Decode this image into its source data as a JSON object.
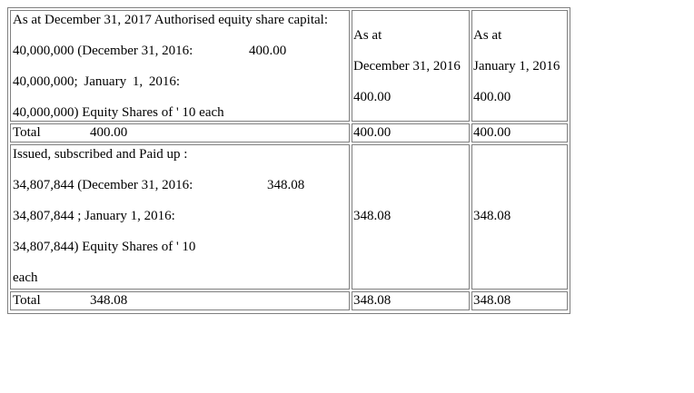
{
  "rows": [
    {
      "desc_lines": [
        "As at December 31, 2017 Authorised equity share capital:",
        "40,000,000 (December 31, 2016:",
        "40,000,000; January 1, 2016:",
        "40,000,000) Equity Shares of ' 10 each"
      ],
      "inline_value": "400.00",
      "col2_lines": [
        "As at",
        "December 31, 2016",
        "400.00"
      ],
      "col3_lines": [
        "As at",
        "January 1, 2016",
        "400.00"
      ]
    },
    {
      "label": "Total",
      "inline_value": "400.00",
      "col2": "400.00",
      "col3": "400.00"
    },
    {
      "desc_lines": [
        "Issued, subscribed and Paid up :",
        "34,807,844 (December 31, 2016:",
        "34,807,844 ; January 1, 2016:",
        "34,807,844) Equity Shares of ' 10",
        "each"
      ],
      "inline_value": "348.08",
      "col2": "348.08",
      "col3": "348.08"
    },
    {
      "label": "Total",
      "inline_value": "348.08",
      "col2": "348.08",
      "col3": "348.08"
    }
  ]
}
